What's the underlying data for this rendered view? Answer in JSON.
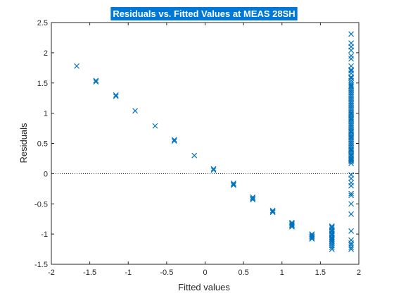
{
  "chart_data": {
    "type": "scatter",
    "title": "Residuals vs. Fitted Values at MEAS 28SH",
    "xlabel": "Fitted values",
    "ylabel": "Residuals",
    "xlim": [
      -2,
      2
    ],
    "ylim": [
      -1.5,
      2.5
    ],
    "xticks": [
      -2,
      -1.5,
      -1,
      -0.5,
      0,
      0.5,
      1,
      1.5,
      2
    ],
    "xtick_labels": [
      "-2",
      "-1.5",
      "-1",
      "-0.5",
      "0",
      "0.5",
      "1",
      "1.5",
      "2"
    ],
    "yticks": [
      -1.5,
      -1,
      -0.5,
      0,
      0.5,
      1,
      1.5,
      2,
      2.5
    ],
    "ytick_labels": [
      "-1.5",
      "-1",
      "-0.5",
      "0",
      "0.5",
      "1",
      "1.5",
      "2",
      "2.5"
    ],
    "reference_line": {
      "y": 0,
      "style": "dotted"
    },
    "grid": false,
    "marker": "x",
    "colors": {
      "marker": "#0072BD",
      "title_highlight": "#0078D7",
      "axes": "#262626"
    },
    "x": [
      -1.67,
      -1.42,
      -1.42,
      -1.16,
      -1.16,
      -0.91,
      -0.65,
      -0.4,
      -0.4,
      -0.14,
      0.11,
      0.11,
      0.37,
      0.37,
      0.37,
      0.62,
      0.62,
      0.62,
      0.88,
      0.88,
      0.88,
      1.13,
      1.13,
      1.13,
      1.13,
      1.13,
      1.39,
      1.39,
      1.39,
      1.39,
      1.39,
      1.65,
      1.65,
      1.65,
      1.65,
      1.65,
      1.65,
      1.65,
      1.65,
      1.65,
      1.65,
      1.65,
      1.65,
      1.65,
      1.65,
      1.65,
      1.65,
      1.65,
      1.65,
      1.65,
      1.9,
      1.9,
      1.9,
      1.9,
      1.9,
      1.9,
      1.9,
      1.9,
      1.9,
      1.9,
      1.9,
      1.9,
      1.9,
      1.9,
      1.9,
      1.9,
      1.9,
      1.9,
      1.9,
      1.9,
      1.9,
      1.9,
      1.9,
      1.9,
      1.9,
      1.9,
      1.9,
      1.9,
      1.9,
      1.9,
      1.9,
      1.9,
      1.9,
      1.9,
      1.9,
      1.9,
      1.9,
      1.9,
      1.9,
      1.9,
      1.9,
      1.9,
      1.9,
      1.9,
      1.9,
      1.9,
      1.9,
      1.9,
      1.9,
      1.9,
      1.9,
      1.9,
      1.9,
      1.9,
      1.9,
      1.9,
      1.9,
      1.9,
      1.9,
      1.9,
      1.9,
      1.9,
      1.9,
      1.9,
      1.9,
      1.9,
      1.9,
      1.9,
      1.9,
      1.9,
      1.9,
      1.9,
      1.9,
      1.9,
      1.9,
      1.9,
      1.9,
      1.9,
      1.9,
      1.9,
      1.9,
      1.9,
      1.9,
      1.9
    ],
    "y": [
      1.78,
      1.52,
      1.54,
      1.28,
      1.3,
      1.04,
      0.79,
      0.54,
      0.56,
      0.3,
      0.06,
      0.08,
      -0.16,
      -0.18,
      -0.19,
      -0.39,
      -0.41,
      -0.43,
      -0.61,
      -0.63,
      -0.64,
      -0.81,
      -0.83,
      -0.85,
      -0.86,
      -0.88,
      -1.0,
      -1.02,
      -1.04,
      -1.06,
      -1.08,
      -0.87,
      -0.9,
      -0.93,
      -0.96,
      -0.99,
      -1.02,
      -1.05,
      -1.08,
      -1.1,
      -1.13,
      -1.16,
      -1.19,
      -1.22,
      -1.25,
      -0.88,
      -0.94,
      -1.0,
      -1.06,
      -1.12,
      2.31,
      2.16,
      2.1,
      2.04,
      1.95,
      1.9,
      1.78,
      1.72,
      1.66,
      1.6,
      1.54,
      1.5,
      1.47,
      1.43,
      1.4,
      1.37,
      1.34,
      1.31,
      1.28,
      1.25,
      1.22,
      1.19,
      1.16,
      1.13,
      1.1,
      1.07,
      1.04,
      1.01,
      0.98,
      0.95,
      0.92,
      0.89,
      0.86,
      0.83,
      0.8,
      0.77,
      0.74,
      0.71,
      0.68,
      0.65,
      0.62,
      0.59,
      0.56,
      0.53,
      0.5,
      0.47,
      0.44,
      0.41,
      0.38,
      0.35,
      0.32,
      0.29,
      0.26,
      0.23,
      0.2,
      0.17,
      -0.02,
      -0.08,
      -0.15,
      -0.2,
      -0.33,
      -0.36,
      -0.5,
      -0.67,
      -0.95,
      -1.1,
      -1.15,
      -1.18,
      -1.22,
      -1.25,
      1.0,
      0.9,
      0.8,
      0.7,
      0.6,
      0.5,
      0.4,
      0.3,
      0.25,
      0.22,
      1.7,
      1.58,
      1.45,
      0.38
    ]
  }
}
